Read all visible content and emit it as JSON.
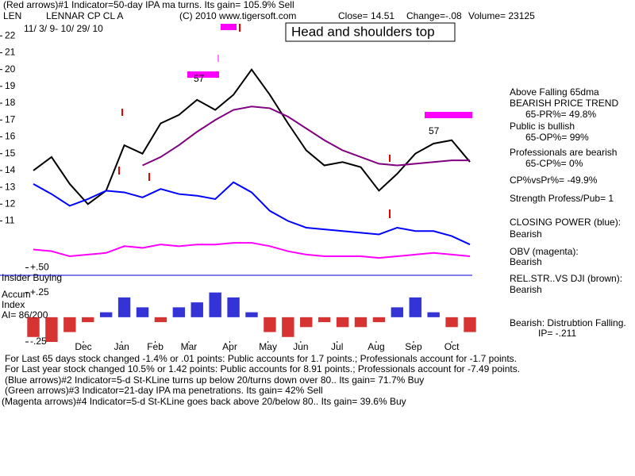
{
  "header": {
    "indicator": "(Red arrows)#1 Indicator=50-day IPA ma turns. Its gain= 105.9% Sell",
    "symbol": "LEN",
    "company": "LENNAR CP CL A",
    "copyright": "(C) 2010 www.tigersoft.com",
    "close": "Close= 14.51",
    "change": "Change=-.08",
    "volume": "Volume= 23125",
    "dates": "11/ 3/ 9- 10/ 29/ 10",
    "pattern": "Head and shoulders top"
  },
  "chart_data": [
    {
      "type": "line",
      "annotations": [
        "57",
        "57"
      ],
      "x": [
        0,
        1,
        2,
        3,
        4,
        5,
        6,
        7,
        8,
        9,
        10,
        11,
        12,
        13,
        14,
        15,
        16,
        17,
        18,
        19,
        20,
        21,
        22,
        23,
        24
      ],
      "xlim": [
        0,
        24
      ],
      "ylim": [
        8.1,
        22.2
      ],
      "yticks": [
        11,
        12,
        13,
        14,
        15,
        16,
        17,
        18,
        19,
        20,
        21,
        22
      ],
      "series": [
        {
          "color": "#000000",
          "values": [
            14.0,
            14.8,
            13.2,
            12.0,
            12.8,
            15.5,
            15.0,
            16.8,
            17.3,
            18.2,
            17.6,
            18.5,
            20.0,
            18.5,
            16.8,
            15.2,
            14.3,
            14.5,
            14.2,
            12.8,
            13.8,
            15.0,
            15.6,
            15.8,
            14.51
          ]
        },
        {
          "color": "#800080",
          "values": [
            null,
            null,
            null,
            null,
            null,
            null,
            14.3,
            14.8,
            15.5,
            16.3,
            17.0,
            17.6,
            17.8,
            17.7,
            17.2,
            16.5,
            15.8,
            15.2,
            14.8,
            14.4,
            14.3,
            14.4,
            14.5,
            14.6,
            14.6
          ]
        },
        {
          "color": "#0000ff",
          "values": [
            13.2,
            12.6,
            11.9,
            12.3,
            12.8,
            12.7,
            12.4,
            12.9,
            12.6,
            12.5,
            12.3,
            13.3,
            12.7,
            11.6,
            11.0,
            10.6,
            10.5,
            10.4,
            10.3,
            10.2,
            10.6,
            10.4,
            10.4,
            10.1,
            9.6
          ]
        },
        {
          "color": "#ff00ff",
          "values": [
            9.3,
            9.2,
            8.9,
            9.0,
            9.1,
            9.5,
            9.4,
            9.6,
            9.5,
            9.6,
            9.6,
            9.7,
            9.7,
            9.5,
            9.2,
            9.0,
            8.9,
            8.9,
            8.9,
            8.8,
            8.9,
            9.0,
            9.1,
            9.0,
            8.9
          ]
        }
      ]
    },
    {
      "type": "bar",
      "labels": [
        "Insider Buying",
        "Accum",
        "Index",
        "AI= 86/200"
      ],
      "x": [
        0,
        1,
        2,
        3,
        4,
        5,
        6,
        7,
        8,
        9,
        10,
        11,
        12,
        13,
        14,
        15,
        16,
        17,
        18,
        19,
        20,
        21,
        22,
        23,
        24
      ],
      "xlim": [
        0,
        24
      ],
      "ylim": [
        -0.33,
        0.52
      ],
      "yticks": [
        {
          "value": 0.5,
          "label": "+.50"
        },
        {
          "value": 0.25,
          "label": "+.25"
        },
        {
          "value": -0.25,
          "label": "-.25"
        }
      ],
      "xticks": [
        {
          "value": 2.75,
          "label": "Dec"
        },
        {
          "value": 4.85,
          "label": "Jan"
        },
        {
          "value": 6.7,
          "label": "Feb"
        },
        {
          "value": 8.55,
          "label": "Mar"
        },
        {
          "value": 10.8,
          "label": "Apr"
        },
        {
          "value": 12.9,
          "label": "May"
        },
        {
          "value": 14.7,
          "label": "Jun"
        },
        {
          "value": 16.7,
          "label": "Jul"
        },
        {
          "value": 18.85,
          "label": "Aug"
        },
        {
          "value": 20.9,
          "label": "Sep"
        },
        {
          "value": 23.0,
          "label": "Oct"
        }
      ],
      "pos_color": "#0000cc",
      "neg_color": "#cc0000",
      "values": [
        -0.2,
        -0.25,
        -0.15,
        -0.05,
        0.05,
        0.2,
        0.1,
        -0.05,
        0.1,
        0.15,
        0.25,
        0.2,
        0.05,
        -0.15,
        -0.2,
        -0.1,
        -0.05,
        -0.1,
        -0.1,
        -0.05,
        0.1,
        0.2,
        0.05,
        -0.1,
        -0.15
      ]
    }
  ],
  "panel": {
    "lines": [
      "Above Falling 65dma",
      "BEARISH PRICE TREND",
      "65-PR%= 49.8%",
      "Public is bullish",
      "65-OP%= 99%",
      "Professionals are bearish",
      "65-CP%= 0%",
      "CP%vsPr%= -49.9%",
      "Strength Profess/Pub= 1",
      "CLOSING POWER (blue):",
      "Bearish",
      "OBV (magenta):",
      "Bearish",
      "REL.STR..VS DJI (brown):",
      "Bearish",
      "Bearish: Distrubtion Falling.",
      "IP= -.211"
    ]
  },
  "footer": {
    "lines": [
      "For Last 65 days stock changed -1.4% or .01 points: Public accounts for 1.7 points.; Professionals account for -1.7 points.",
      "For Last year stock changed 10.5% or 1.42 points: Public accounts for 8.91 points.; Professionals account for -7.49 points.",
      "(Blue arrows)#2 Indicator=5-d St-KLine turns up below 20/turns down over 80.. Its gain= 71.7% Buy",
      "(Green arrows)#3 Indicator=21-day IPA ma penetrations. Its gain= 42% Sell",
      "(Magenta arrows)#4 Indicator=5-d St-KLine goes back above 20/below 80.. Its gain= 39.6% Buy"
    ]
  }
}
